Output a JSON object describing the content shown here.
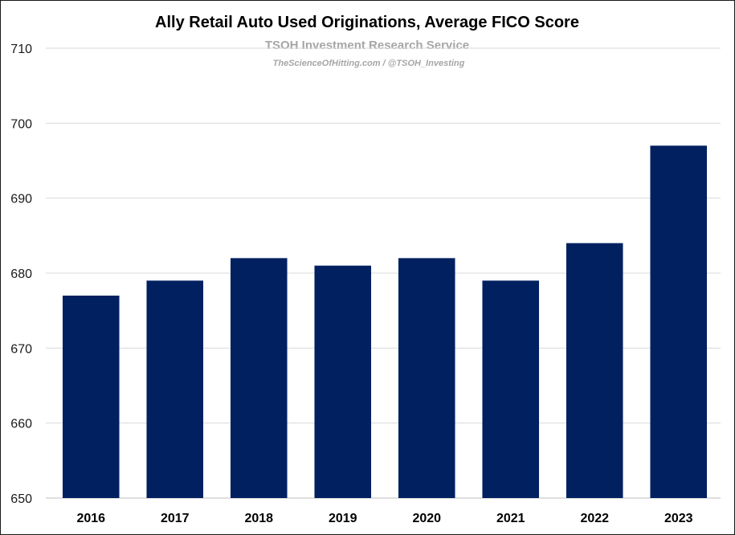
{
  "chart_data": {
    "type": "bar",
    "title": "Ally Retail Auto Used Originations, Average FICO Score",
    "watermark_line1": "TSOH Investment Research Service",
    "watermark_line2": "TheScienceOfHitting.com / @TSOH_Investing",
    "categories": [
      "2016",
      "2017",
      "2018",
      "2019",
      "2020",
      "2021",
      "2022",
      "2023"
    ],
    "values": [
      677,
      679,
      682,
      681,
      682,
      679,
      684,
      697
    ],
    "xlabel": "",
    "ylabel": "",
    "ylim": [
      650,
      710
    ],
    "yticks": [
      650,
      660,
      670,
      680,
      690,
      700,
      710
    ],
    "grid": true,
    "legend": "none",
    "bar_color": "#002060"
  }
}
